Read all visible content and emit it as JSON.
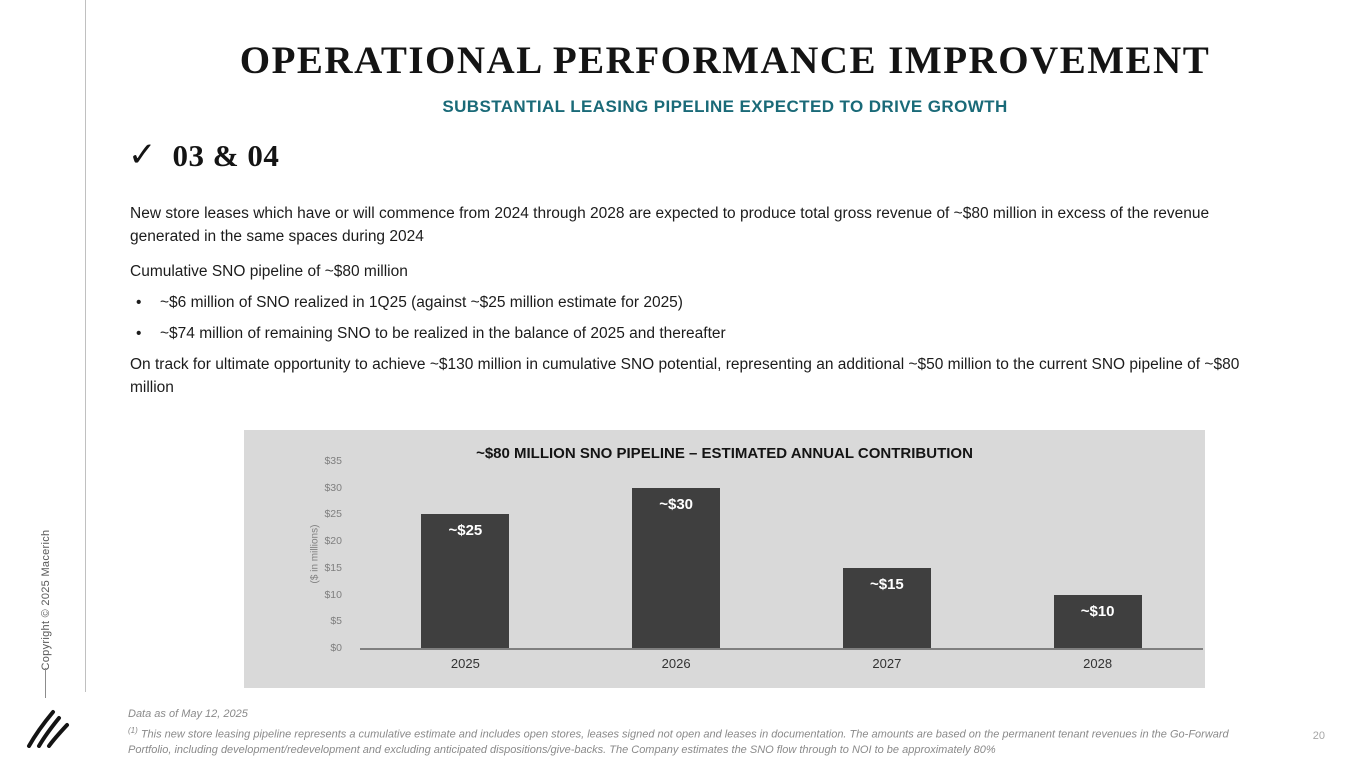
{
  "slide": {
    "title": "OPERATIONAL PERFORMANCE IMPROVEMENT",
    "subtitle": "SUBSTANTIAL LEASING PIPELINE EXPECTED TO DRIVE GROWTH",
    "checkmark": "✓",
    "section_label": "03 & 04",
    "bullet_char": "•",
    "paragraph1": "New store leases which have or will commence from 2024 through 2028 are expected to produce total gross revenue of ~$80 million in excess of the revenue generated in the same spaces during 2024",
    "paragraph2": "Cumulative SNO pipeline of ~$80 million",
    "bullets": [
      "~$6 million of SNO realized in 1Q25 (against ~$25 million estimate for 2025)",
      "~$74 million of remaining SNO to be realized in the balance of 2025 and thereafter"
    ],
    "paragraph3": "On track for ultimate opportunity to achieve ~$130 million in cumulative SNO potential, representing an additional ~$50 million to the current SNO pipeline of ~$80 million",
    "sidebar_copyright": "Copyright © 2025 Macerich",
    "footer": {
      "data_as_of": "Data as of May 12, 2025",
      "footnote_marker": "(1)",
      "footnote": " This new store leasing pipeline represents a cumulative estimate and includes open stores, leases signed not open and leases in documentation. The amounts are based on the permanent tenant revenues in the Go-Forward Portfolio, including development/redevelopment and excluding anticipated dispositions/give-backs. The Company estimates the SNO flow through to NOI to be approximately 80%"
    },
    "page_number": "20"
  },
  "chart_data": {
    "type": "bar",
    "title": "~$80 MILLION SNO PIPELINE – ESTIMATED ANNUAL CONTRIBUTION",
    "categories": [
      "2025",
      "2026",
      "2027",
      "2028"
    ],
    "values": [
      25,
      30,
      15,
      10
    ],
    "data_labels": [
      "~$25",
      "~$30",
      "~$15",
      "~$10"
    ],
    "xlabel": "",
    "ylabel": "($ in millions)",
    "ytick_labels": [
      "$0",
      "$5",
      "$10",
      "$15",
      "$20",
      "$25",
      "$30",
      "$35"
    ],
    "ylim": [
      0,
      35
    ],
    "grid": false,
    "legend": false,
    "bar_color": "#3f3f3f",
    "panel_background": "#d9d9d9"
  },
  "colors": {
    "accent_teal": "#1a6a78",
    "bar": "#3f3f3f",
    "chart_background": "#d9d9d9"
  }
}
